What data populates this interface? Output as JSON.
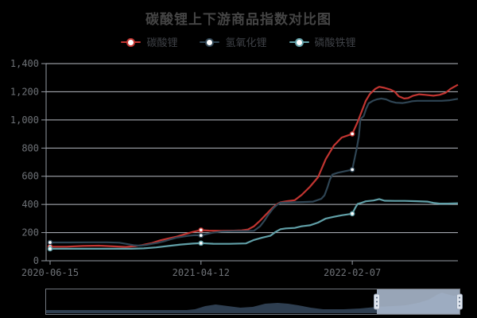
{
  "title": "碳酸锂上下游商品指数对比图",
  "legend": [
    {
      "label": "碳酸锂",
      "color": "#c23531"
    },
    {
      "label": "氢氧化锂",
      "color": "#2f4554"
    },
    {
      "label": "磷酸铁锂",
      "color": "#61a0a8"
    }
  ],
  "colors": {
    "background": "#000000",
    "title_text": "#454545",
    "legend_text": "#3e4146",
    "axis_label": "#6e7277",
    "axis_line": "#969ca4",
    "gridline": "#cdd1da",
    "series_red": "#c23531",
    "series_navy": "#2f4554",
    "series_teal": "#61a0a8",
    "zoom_border": "#71767d",
    "zoom_area_fill": "#2e3e50",
    "zoom_selection_fill": "rgba(173,188,208,0.88)",
    "zoom_handle_fill": "#dfe5ee",
    "zoom_handle_stroke": "#98a5b8",
    "zoom_handle_dot": "#52627a"
  },
  "chart_data": {
    "type": "line",
    "title": "碳酸锂上下游商品指数对比图",
    "xlabel": "",
    "ylabel": "",
    "ylim": [
      0,
      1400
    ],
    "grid": true,
    "legend_position": "top",
    "y_ticks": [
      {
        "value": 0,
        "label": "0"
      },
      {
        "value": 200,
        "label": "200"
      },
      {
        "value": 400,
        "label": "400"
      },
      {
        "value": 600,
        "label": "600"
      },
      {
        "value": 800,
        "label": "800"
      },
      {
        "value": 1000,
        "label": "1,000"
      },
      {
        "value": 1200,
        "label": "1,200"
      },
      {
        "value": 1400,
        "label": "1,400"
      }
    ],
    "x_ticks": [
      {
        "f": 0.0,
        "label": "2020-06-15"
      },
      {
        "f": 0.37,
        "label": "2021-04-12"
      },
      {
        "f": 0.741,
        "label": "2022-02-07"
      }
    ],
    "series": [
      {
        "name": "碳酸锂",
        "color": "#c23531",
        "points": [
          [
            0,
            100
          ],
          [
            0.04,
            100
          ],
          [
            0.08,
            105
          ],
          [
            0.12,
            107
          ],
          [
            0.155,
            102
          ],
          [
            0.185,
            98
          ],
          [
            0.21,
            104
          ],
          [
            0.225,
            111
          ],
          [
            0.25,
            126
          ],
          [
            0.27,
            145
          ],
          [
            0.29,
            158
          ],
          [
            0.31,
            171
          ],
          [
            0.33,
            188
          ],
          [
            0.35,
            205
          ],
          [
            0.37,
            218
          ],
          [
            0.39,
            214
          ],
          [
            0.42,
            212
          ],
          [
            0.45,
            214
          ],
          [
            0.47,
            216
          ],
          [
            0.485,
            222
          ],
          [
            0.5,
            245
          ],
          [
            0.515,
            285
          ],
          [
            0.53,
            330
          ],
          [
            0.545,
            375
          ],
          [
            0.558,
            405
          ],
          [
            0.565,
            415
          ],
          [
            0.58,
            423
          ],
          [
            0.6,
            430
          ],
          [
            0.617,
            468
          ],
          [
            0.637,
            525
          ],
          [
            0.657,
            593
          ],
          [
            0.676,
            722
          ],
          [
            0.696,
            818
          ],
          [
            0.715,
            875
          ],
          [
            0.741,
            901
          ],
          [
            0.754,
            985
          ],
          [
            0.774,
            1136
          ],
          [
            0.784,
            1184
          ],
          [
            0.797,
            1220
          ],
          [
            0.807,
            1235
          ],
          [
            0.82,
            1228
          ],
          [
            0.835,
            1215
          ],
          [
            0.845,
            1200
          ],
          [
            0.855,
            1168
          ],
          [
            0.868,
            1152
          ],
          [
            0.878,
            1155
          ],
          [
            0.89,
            1172
          ],
          [
            0.905,
            1182
          ],
          [
            0.92,
            1178
          ],
          [
            0.94,
            1172
          ],
          [
            0.955,
            1178
          ],
          [
            0.97,
            1193
          ],
          [
            0.982,
            1221
          ],
          [
            1,
            1250
          ]
        ],
        "markers": [
          [
            0,
            100
          ],
          [
            0.37,
            218
          ],
          [
            0.741,
            901
          ]
        ]
      },
      {
        "name": "氢氧化锂",
        "color": "#2f4554",
        "points": [
          [
            0,
            130
          ],
          [
            0.05,
            130
          ],
          [
            0.1,
            131
          ],
          [
            0.14,
            131
          ],
          [
            0.17,
            128
          ],
          [
            0.19,
            118
          ],
          [
            0.205,
            110
          ],
          [
            0.22,
            107
          ],
          [
            0.235,
            112
          ],
          [
            0.25,
            120
          ],
          [
            0.265,
            128
          ],
          [
            0.28,
            139
          ],
          [
            0.295,
            152
          ],
          [
            0.31,
            164
          ],
          [
            0.325,
            171
          ],
          [
            0.34,
            178
          ],
          [
            0.355,
            182
          ],
          [
            0.37,
            180
          ],
          [
            0.385,
            190
          ],
          [
            0.4,
            200
          ],
          [
            0.42,
            208
          ],
          [
            0.45,
            211
          ],
          [
            0.48,
            211
          ],
          [
            0.5,
            213
          ],
          [
            0.515,
            245
          ],
          [
            0.525,
            282
          ],
          [
            0.535,
            327
          ],
          [
            0.548,
            375
          ],
          [
            0.558,
            400
          ],
          [
            0.565,
            412
          ],
          [
            0.59,
            415
          ],
          [
            0.62,
            417
          ],
          [
            0.645,
            420
          ],
          [
            0.665,
            440
          ],
          [
            0.673,
            465
          ],
          [
            0.68,
            520
          ],
          [
            0.686,
            575
          ],
          [
            0.692,
            612
          ],
          [
            0.705,
            625
          ],
          [
            0.72,
            634
          ],
          [
            0.741,
            647
          ],
          [
            0.747,
            730
          ],
          [
            0.752,
            800
          ],
          [
            0.757,
            880
          ],
          [
            0.761,
            1005
          ],
          [
            0.769,
            1028
          ],
          [
            0.775,
            1080
          ],
          [
            0.781,
            1118
          ],
          [
            0.791,
            1135
          ],
          [
            0.801,
            1146
          ],
          [
            0.812,
            1152
          ],
          [
            0.824,
            1146
          ],
          [
            0.836,
            1131
          ],
          [
            0.848,
            1122
          ],
          [
            0.865,
            1120
          ],
          [
            0.878,
            1127
          ],
          [
            0.888,
            1133
          ],
          [
            0.9,
            1136
          ],
          [
            0.93,
            1136
          ],
          [
            0.96,
            1136
          ],
          [
            0.98,
            1140
          ],
          [
            1,
            1150
          ]
        ],
        "markers": [
          [
            0,
            130
          ],
          [
            0.37,
            180
          ],
          [
            0.741,
            647
          ]
        ]
      },
      {
        "name": "磷酸铁锂",
        "color": "#61a0a8",
        "points": [
          [
            0,
            85
          ],
          [
            0.05,
            85
          ],
          [
            0.1,
            85
          ],
          [
            0.15,
            85
          ],
          [
            0.2,
            85
          ],
          [
            0.23,
            88
          ],
          [
            0.26,
            95
          ],
          [
            0.29,
            105
          ],
          [
            0.32,
            115
          ],
          [
            0.35,
            122
          ],
          [
            0.37,
            125
          ],
          [
            0.4,
            121
          ],
          [
            0.44,
            120
          ],
          [
            0.48,
            123
          ],
          [
            0.5,
            148
          ],
          [
            0.52,
            164
          ],
          [
            0.54,
            177
          ],
          [
            0.553,
            205
          ],
          [
            0.565,
            224
          ],
          [
            0.578,
            230
          ],
          [
            0.6,
            233
          ],
          [
            0.617,
            245
          ],
          [
            0.637,
            252
          ],
          [
            0.657,
            271
          ],
          [
            0.676,
            300
          ],
          [
            0.696,
            312
          ],
          [
            0.715,
            323
          ],
          [
            0.741,
            334
          ],
          [
            0.748,
            374
          ],
          [
            0.754,
            403
          ],
          [
            0.764,
            412
          ],
          [
            0.774,
            422
          ],
          [
            0.793,
            428
          ],
          [
            0.807,
            438
          ],
          [
            0.82,
            426
          ],
          [
            0.845,
            425
          ],
          [
            0.87,
            425
          ],
          [
            0.9,
            423
          ],
          [
            0.925,
            420
          ],
          [
            0.94,
            411
          ],
          [
            0.955,
            406
          ],
          [
            0.975,
            406
          ],
          [
            1,
            408
          ]
        ],
        "markers": [
          [
            0,
            85
          ],
          [
            0.37,
            125
          ],
          [
            0.741,
            334
          ]
        ]
      }
    ],
    "datazoom": {
      "window": [
        0.8,
        1.0
      ],
      "profile": [
        [
          0,
          4
        ],
        [
          0.05,
          4
        ],
        [
          0.1,
          4
        ],
        [
          0.15,
          4
        ],
        [
          0.2,
          4
        ],
        [
          0.25,
          4
        ],
        [
          0.3,
          4
        ],
        [
          0.34,
          4
        ],
        [
          0.36,
          5
        ],
        [
          0.385,
          9
        ],
        [
          0.41,
          11
        ],
        [
          0.44,
          9
        ],
        [
          0.47,
          7
        ],
        [
          0.5,
          8
        ],
        [
          0.53,
          12
        ],
        [
          0.56,
          13
        ],
        [
          0.585,
          12
        ],
        [
          0.61,
          10
        ],
        [
          0.64,
          7
        ],
        [
          0.67,
          5
        ],
        [
          0.72,
          5
        ],
        [
          0.76,
          6
        ],
        [
          0.8,
          8
        ],
        [
          0.84,
          9
        ],
        [
          0.87,
          10
        ],
        [
          0.9,
          13
        ],
        [
          0.925,
          17
        ],
        [
          0.945,
          23
        ],
        [
          0.957,
          26
        ],
        [
          0.97,
          24
        ],
        [
          0.985,
          22
        ],
        [
          1,
          23
        ]
      ]
    }
  }
}
